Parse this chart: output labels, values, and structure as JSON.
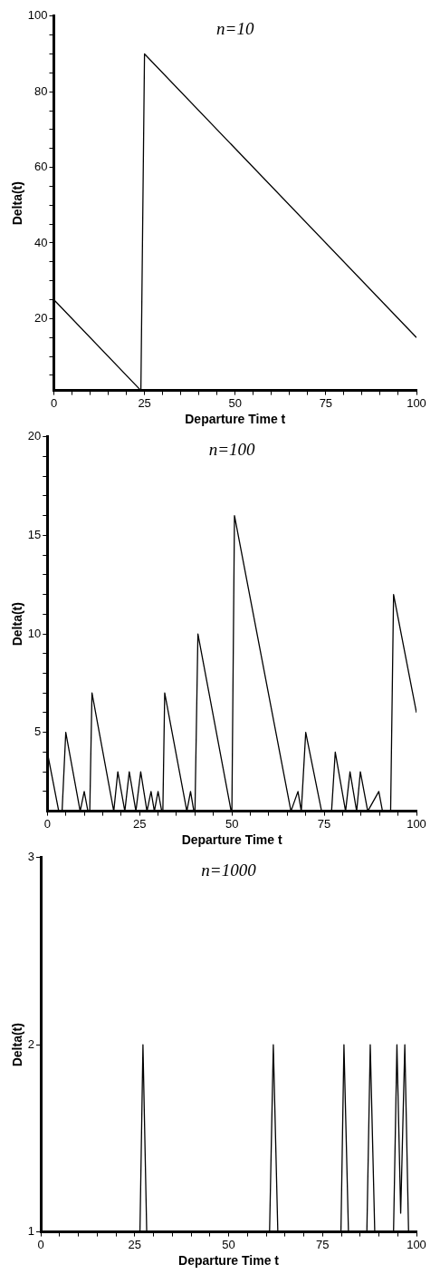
{
  "chart_data": [
    {
      "type": "line",
      "title": "n=10",
      "xlabel": "Departure Time t",
      "ylabel": "Delta(t)",
      "xlim": [
        0,
        100
      ],
      "ylim": [
        1,
        100
      ],
      "xticks": [
        0,
        {
          "value": 5,
          "label": null
        },
        {
          "value": 10,
          "label": null
        },
        {
          "value": 15,
          "label": null
        },
        {
          "value": 20,
          "label": null
        },
        25,
        {
          "value": 30,
          "label": null
        },
        {
          "value": 35,
          "label": null
        },
        {
          "value": 40,
          "label": null
        },
        {
          "value": 45,
          "label": null
        },
        50,
        {
          "value": 55,
          "label": null
        },
        {
          "value": 60,
          "label": null
        },
        {
          "value": 65,
          "label": null
        },
        {
          "value": 70,
          "label": null
        },
        75,
        {
          "value": 80,
          "label": null
        },
        {
          "value": 85,
          "label": null
        },
        {
          "value": 90,
          "label": null
        },
        {
          "value": 95,
          "label": null
        },
        100
      ],
      "yticks": [
        {
          "value": 5,
          "label": null
        },
        {
          "value": 10,
          "label": null
        },
        {
          "value": 15,
          "label": null
        },
        20,
        {
          "value": 25,
          "label": null
        },
        {
          "value": 30,
          "label": null
        },
        {
          "value": 35,
          "label": null
        },
        40,
        {
          "value": 45,
          "label": null
        },
        {
          "value": 50,
          "label": null
        },
        {
          "value": 55,
          "label": null
        },
        60,
        {
          "value": 65,
          "label": null
        },
        {
          "value": 70,
          "label": null
        },
        {
          "value": 75,
          "label": null
        },
        80,
        {
          "value": 85,
          "label": null
        },
        {
          "value": 90,
          "label": null
        },
        {
          "value": 95,
          "label": null
        },
        100
      ],
      "grid": false,
      "legend": false,
      "marker": "none",
      "line_style": "solid",
      "series": [
        {
          "color": "#000000",
          "x": [
            0,
            24,
            25,
            100
          ],
          "values": [
            25,
            1,
            90,
            15
          ]
        }
      ]
    },
    {
      "type": "line",
      "title": "n=100",
      "xlabel": "Departure Time t",
      "ylabel": "Delta(t)",
      "xlim": [
        0,
        100
      ],
      "ylim": [
        1,
        20
      ],
      "xticks": [
        0,
        {
          "value": 5,
          "label": null
        },
        {
          "value": 10,
          "label": null
        },
        {
          "value": 15,
          "label": null
        },
        {
          "value": 20,
          "label": null
        },
        25,
        {
          "value": 30,
          "label": null
        },
        {
          "value": 35,
          "label": null
        },
        {
          "value": 40,
          "label": null
        },
        {
          "value": 45,
          "label": null
        },
        50,
        {
          "value": 55,
          "label": null
        },
        {
          "value": 60,
          "label": null
        },
        {
          "value": 65,
          "label": null
        },
        {
          "value": 70,
          "label": null
        },
        75,
        {
          "value": 80,
          "label": null
        },
        {
          "value": 85,
          "label": null
        },
        {
          "value": 90,
          "label": null
        },
        {
          "value": 95,
          "label": null
        },
        100
      ],
      "yticks": [
        {
          "value": 2,
          "label": null
        },
        {
          "value": 3,
          "label": null
        },
        {
          "value": 4,
          "label": null
        },
        5,
        {
          "value": 6,
          "label": null
        },
        {
          "value": 7,
          "label": null
        },
        {
          "value": 8,
          "label": null
        },
        {
          "value": 9,
          "label": null
        },
        10,
        {
          "value": 11,
          "label": null
        },
        {
          "value": 12,
          "label": null
        },
        {
          "value": 13,
          "label": null
        },
        {
          "value": 14,
          "label": null
        },
        15,
        {
          "value": 16,
          "label": null
        },
        {
          "value": 17,
          "label": null
        },
        {
          "value": 18,
          "label": null
        },
        {
          "value": 19,
          "label": null
        },
        20
      ],
      "grid": false,
      "legend": false,
      "marker": "none",
      "line_style": "solid",
      "series": [
        {
          "color": "#000000",
          "x": [
            0,
            3.1,
            4,
            5,
            8.9,
            10,
            11,
            11.5,
            12.1,
            18,
            19.1,
            21,
            22.2,
            24,
            25.3,
            27,
            28.1,
            29,
            30,
            31,
            31.3,
            31.8,
            37.8,
            38.8,
            39.7,
            40,
            40.8,
            49.8,
            50,
            50.7,
            66,
            67.9,
            68.8,
            70,
            74.3,
            77,
            78,
            80.8,
            82,
            83.8,
            84.8,
            86.8,
            89.8,
            90.8,
            93,
            93.8,
            100
          ],
          "values": [
            4,
            1,
            1,
            5,
            1,
            2,
            1,
            1,
            7,
            1,
            3,
            1,
            3,
            1,
            3,
            1,
            2,
            1,
            2,
            1,
            1,
            7,
            1,
            2,
            1,
            1,
            10,
            1,
            1,
            16,
            1,
            2,
            1,
            5,
            1,
            1,
            4,
            1,
            3,
            1,
            3,
            1,
            2,
            1,
            1,
            12,
            6
          ]
        }
      ]
    },
    {
      "type": "line",
      "title": "n=1000",
      "xlabel": "Departure Time t",
      "ylabel": "Delta(t)",
      "xlim": [
        0,
        100
      ],
      "ylim": [
        1,
        3
      ],
      "xticks": [
        0,
        {
          "value": 5,
          "label": null
        },
        {
          "value": 10,
          "label": null
        },
        {
          "value": 15,
          "label": null
        },
        {
          "value": 20,
          "label": null
        },
        25,
        {
          "value": 30,
          "label": null
        },
        {
          "value": 35,
          "label": null
        },
        {
          "value": 40,
          "label": null
        },
        {
          "value": 45,
          "label": null
        },
        50,
        {
          "value": 55,
          "label": null
        },
        {
          "value": 60,
          "label": null
        },
        {
          "value": 65,
          "label": null
        },
        {
          "value": 70,
          "label": null
        },
        75,
        {
          "value": 80,
          "label": null
        },
        {
          "value": 85,
          "label": null
        },
        {
          "value": 90,
          "label": null
        },
        {
          "value": 95,
          "label": null
        },
        100
      ],
      "yticks": [
        1,
        2,
        3
      ],
      "grid": false,
      "legend": false,
      "marker": "none",
      "line_style": "solid",
      "series": [
        {
          "color": "#000000",
          "x": [
            0,
            26.4,
            27.2,
            28.2,
            60.9,
            61.9,
            63.1,
            79.9,
            80.7,
            81.9,
            86.8,
            87.7,
            88.9,
            93.9,
            94.8,
            95.8,
            96.9,
            97.9,
            100
          ],
          "values": [
            1,
            1,
            2,
            1,
            1,
            2,
            1,
            1,
            2,
            1,
            1,
            2,
            1,
            1,
            2,
            1.1,
            2,
            1,
            1
          ]
        }
      ]
    }
  ]
}
